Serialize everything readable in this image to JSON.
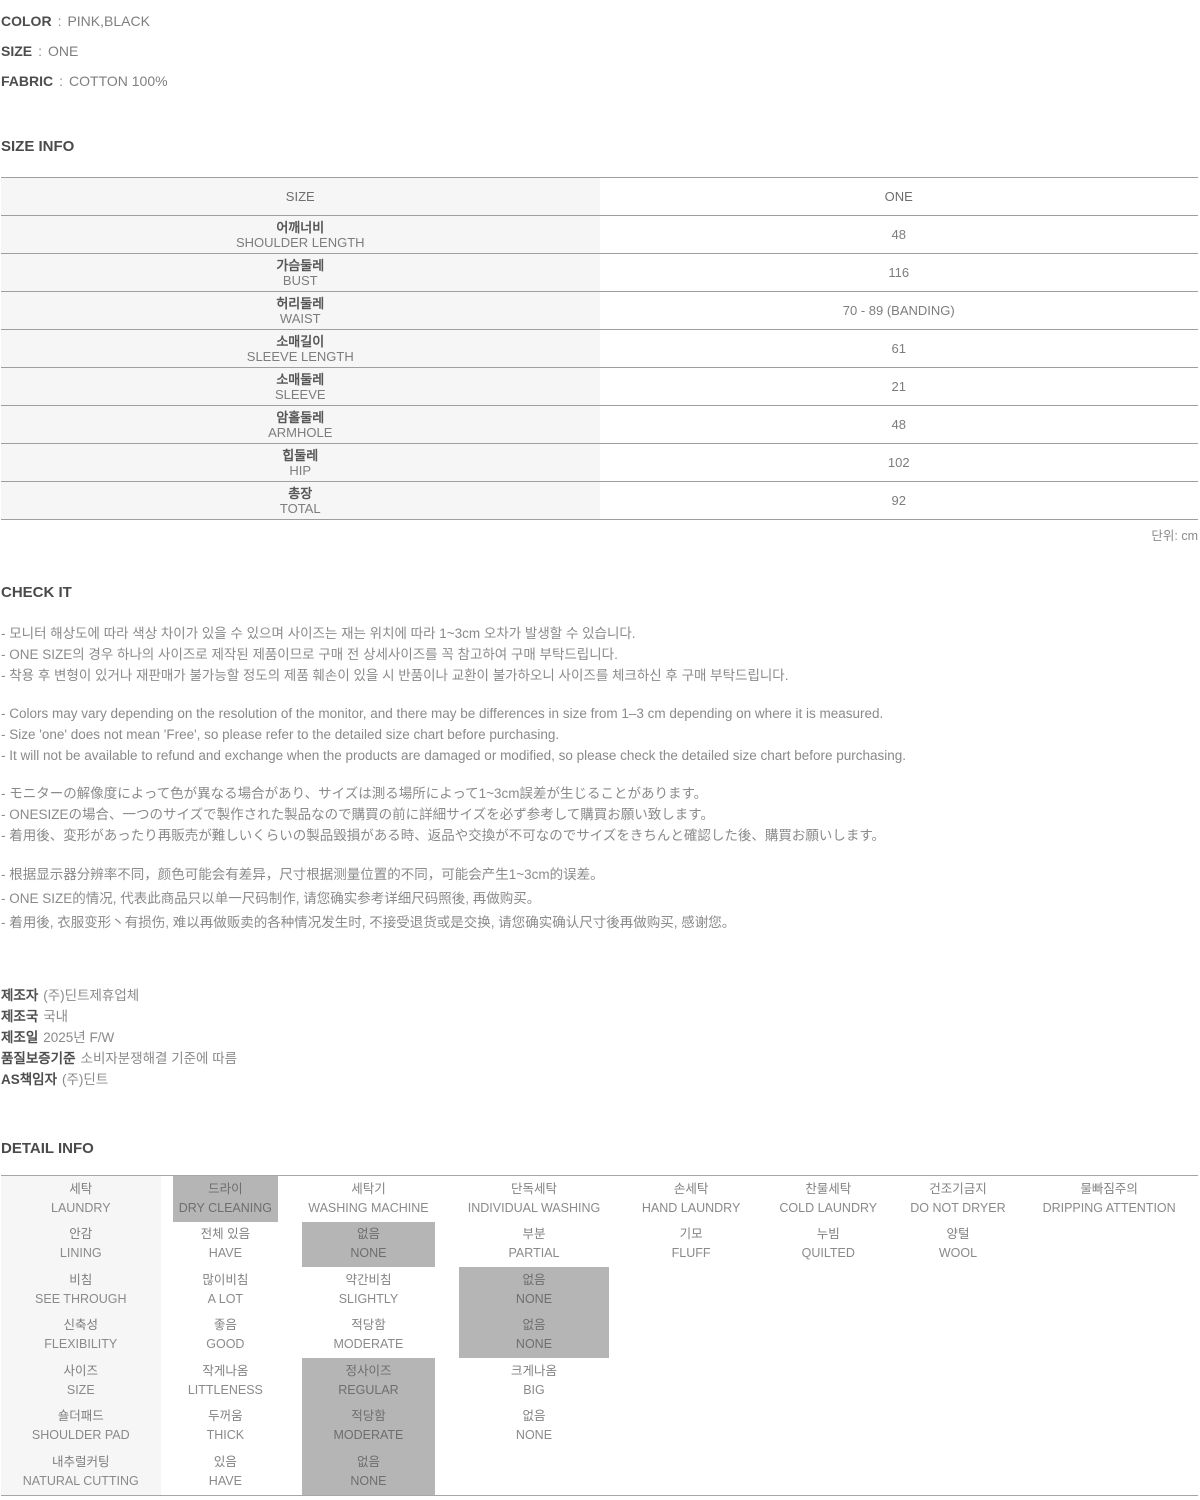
{
  "product_specs": {
    "rows": [
      {
        "label": "COLOR",
        "sep": ":",
        "value": "PINK,BLACK"
      },
      {
        "label": "SIZE",
        "sep": ":",
        "value": "ONE"
      },
      {
        "label": "FABRIC",
        "sep": ":",
        "value": "COTTON 100%"
      }
    ]
  },
  "size_info": {
    "title": "SIZE INFO",
    "header": {
      "size_col": "SIZE",
      "value_col": "ONE"
    },
    "rows": [
      {
        "kr": "어깨너비",
        "en": "SHOULDER LENGTH",
        "value": "48"
      },
      {
        "kr": "가슴둘레",
        "en": "BUST",
        "value": "116"
      },
      {
        "kr": "허리둘레",
        "en": "WAIST",
        "value": "70 - 89 (BANDING)"
      },
      {
        "kr": "소매길이",
        "en": "SLEEVE LENGTH",
        "value": "61"
      },
      {
        "kr": "소매둘레",
        "en": "SLEEVE",
        "value": "21"
      },
      {
        "kr": "암홀둘레",
        "en": "ARMHOLE",
        "value": "48"
      },
      {
        "kr": "힙둘레",
        "en": "HIP",
        "value": "102"
      },
      {
        "kr": "총장",
        "en": "TOTAL",
        "value": "92"
      }
    ],
    "unit_note": "단위: cm"
  },
  "check_it": {
    "title": "CHECK IT",
    "korean": [
      "- 모니터 해상도에 따라 색상 차이가 있을 수 있으며 사이즈는 재는 위치에 따라 1~3cm 오차가 발생할 수 있습니다.",
      "- ONE SIZE의 경우 하나의 사이즈로 제작된 제품이므로 구매 전 상세사이즈를 꼭 참고하여 구매 부탁드립니다.",
      "- 착용 후 변형이 있거나 재판매가 불가능할 정도의 제품 훼손이 있을 시 반품이나 교환이 불가하오니 사이즈를 체크하신 후 구매 부탁드립니다."
    ],
    "english": [
      "- Colors may vary depending on the resolution of the monitor, and there may be differences in size from 1–3 cm depending on where it is measured.",
      "- Size 'one' does not mean 'Free', so please refer to the detailed size chart before purchasing.",
      "- It will not be available to refund and exchange when the products are damaged or modified, so please check the detailed size chart before purchasing."
    ],
    "japanese": [
      "- モニターの解像度によって色が異なる場合があり、サイズは測る場所によって1~3cm誤差が生じることがあります。",
      "- ONESIZEの場合、一つのサイズで製作された製品なので購買の前に詳細サイズを必ず参考して購買お願い致します。",
      "- 着用後、変形があったり再販売が難しいくらいの製品毀損がある時、返品や交換が不可なのでサイズをきちんと確認した後、購買お願いします。"
    ],
    "chinese": [
      "- 根据显示器分辨率不同，颜色可能会有差异，尺寸根据测量位置的不同，可能会产生1~3cm的误差。",
      "- ONE SIZE的情况, 代表此商品只以单一尺码制作, 请您确实参考详细尺码照後, 再做购买。",
      "- 着用後, 衣服变形丶有损伤, 难以再做贩卖的各种情况发生时, 不接受退货或是交换, 请您确实确认尺寸後再做购买, 感谢您。"
    ]
  },
  "manufacturer": {
    "rows": [
      {
        "label": "제조자",
        "value": "(주)딘트제휴업체"
      },
      {
        "label": "제조국",
        "value": "국내"
      },
      {
        "label": "제조일",
        "value": "2025년 F/W"
      },
      {
        "label": "품질보증기준",
        "value": "소비자분쟁해결 기준에 따름"
      },
      {
        "label": "AS책임자",
        "value": "(주)딘트"
      }
    ]
  },
  "detail_info": {
    "title": "DETAIL INFO",
    "rows": [
      {
        "label_kr": "세탁",
        "label_en": "LAUNDRY",
        "options": [
          {
            "kr": "드라이",
            "en": "DRY CLEANING",
            "selected": true
          },
          {
            "kr": "세탁기",
            "en": "WASHING MACHINE",
            "selected": false
          },
          {
            "kr": "단독세탁",
            "en": "INDIVIDUAL WASHING",
            "selected": false
          },
          {
            "kr": "손세탁",
            "en": "HAND LAUNDRY",
            "selected": false
          },
          {
            "kr": "찬물세탁",
            "en": "COLD LAUNDRY",
            "selected": false
          },
          {
            "kr": "건조기금지",
            "en": "DO NOT DRYER",
            "selected": false
          },
          {
            "kr": "물빠짐주의",
            "en": "DRIPPING ATTENTION",
            "selected": false
          }
        ]
      },
      {
        "label_kr": "안감",
        "label_en": "LINING",
        "options": [
          {
            "kr": "전체 있음",
            "en": "HAVE",
            "selected": false
          },
          {
            "kr": "없음",
            "en": "NONE",
            "selected": true
          },
          {
            "kr": "부분",
            "en": "PARTIAL",
            "selected": false
          },
          {
            "kr": "기모",
            "en": "FLUFF",
            "selected": false
          },
          {
            "kr": "누빔",
            "en": "QUILTED",
            "selected": false
          },
          {
            "kr": "양털",
            "en": "WOOL",
            "selected": false
          }
        ]
      },
      {
        "label_kr": "비침",
        "label_en": "SEE THROUGH",
        "options": [
          {
            "kr": "많이비침",
            "en": "A LOT",
            "selected": false
          },
          {
            "kr": "약간비침",
            "en": "SLIGHTLY",
            "selected": false
          },
          {
            "kr": "없음",
            "en": "NONE",
            "selected": true
          }
        ]
      },
      {
        "label_kr": "신축성",
        "label_en": "FLEXIBILITY",
        "options": [
          {
            "kr": "좋음",
            "en": "GOOD",
            "selected": false
          },
          {
            "kr": "적당함",
            "en": "MODERATE",
            "selected": false
          },
          {
            "kr": "없음",
            "en": "NONE",
            "selected": true
          }
        ]
      },
      {
        "label_kr": "사이즈",
        "label_en": "SIZE",
        "options": [
          {
            "kr": "작게나옴",
            "en": "LITTLENESS",
            "selected": false
          },
          {
            "kr": "정사이즈",
            "en": "REGULAR",
            "selected": true
          },
          {
            "kr": "크게나옴",
            "en": "BIG",
            "selected": false
          }
        ]
      },
      {
        "label_kr": "숄더패드",
        "label_en": "SHOULDER PAD",
        "options": [
          {
            "kr": "두꺼움",
            "en": "THICK",
            "selected": false
          },
          {
            "kr": "적당함",
            "en": "MODERATE",
            "selected": true
          },
          {
            "kr": "없음",
            "en": "NONE",
            "selected": false
          }
        ]
      },
      {
        "label_kr": "내추럴커팅",
        "label_en": "NATURAL CUTTING",
        "options": [
          {
            "kr": "있음",
            "en": "HAVE",
            "selected": false
          },
          {
            "kr": "없음",
            "en": "NONE",
            "selected": true
          }
        ]
      }
    ]
  },
  "colors": {
    "highlight_bg": "#b5b5b5",
    "label_column_bg": "#f6f6f6",
    "table_border": "#9f9f9f"
  }
}
